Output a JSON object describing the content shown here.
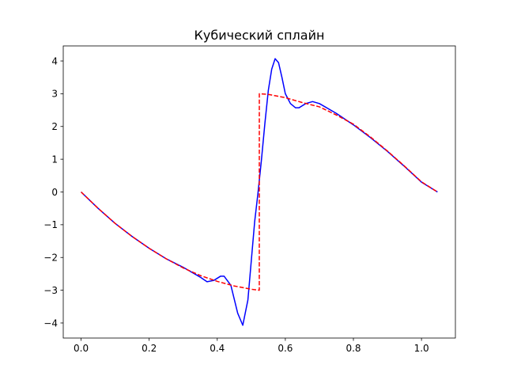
{
  "chart_data": {
    "type": "line",
    "title": "Кубический сплайн",
    "xlabel": "",
    "ylabel": "",
    "xlim": [
      -0.0524,
      1.0996
    ],
    "ylim": [
      -4.46,
      4.46
    ],
    "grid": false,
    "legend": "none",
    "x_ticks": [
      0.0,
      0.2,
      0.4,
      0.6,
      0.8,
      1.0
    ],
    "x_tick_labels": [
      "0.0",
      "0.2",
      "0.4",
      "0.6",
      "0.8",
      "1.0"
    ],
    "y_ticks": [
      -4,
      -3,
      -2,
      -1,
      0,
      1,
      2,
      3,
      4
    ],
    "y_tick_labels": [
      "−4",
      "−3",
      "−2",
      "−1",
      "0",
      "1",
      "2",
      "3",
      "4"
    ],
    "series": [
      {
        "color": "#0000ff",
        "style": "solid",
        "x": [
          0.0,
          0.05,
          0.1,
          0.15,
          0.2,
          0.25,
          0.3,
          0.35,
          0.37,
          0.39,
          0.41,
          0.42,
          0.44,
          0.46,
          0.475,
          0.49,
          0.5,
          0.51,
          0.52,
          0.53,
          0.54,
          0.55,
          0.56,
          0.57,
          0.58,
          0.59,
          0.6,
          0.615,
          0.63,
          0.64,
          0.66,
          0.68,
          0.7,
          0.75,
          0.8,
          0.85,
          0.9,
          0.95,
          1.0,
          1.047
        ],
        "y": [
          0.0,
          -0.5,
          -0.96,
          -1.36,
          -1.72,
          -2.04,
          -2.3,
          -2.6,
          -2.74,
          -2.7,
          -2.57,
          -2.57,
          -2.85,
          -3.7,
          -4.07,
          -3.3,
          -2.1,
          -0.9,
          0.0,
          1.0,
          2.1,
          3.1,
          3.75,
          4.07,
          3.95,
          3.5,
          3.0,
          2.7,
          2.57,
          2.57,
          2.7,
          2.76,
          2.7,
          2.4,
          2.05,
          1.66,
          1.24,
          0.78,
          0.3,
          0.0
        ]
      },
      {
        "color": "#ff0000",
        "style": "dashed",
        "x": [
          0.0,
          0.05,
          0.1,
          0.15,
          0.2,
          0.25,
          0.3,
          0.35,
          0.4,
          0.45,
          0.5,
          0.5235,
          0.5236,
          0.55,
          0.6,
          0.65,
          0.7,
          0.75,
          0.8,
          0.85,
          0.9,
          0.95,
          1.0,
          1.047
        ],
        "y": [
          0.0,
          -0.5,
          -0.96,
          -1.36,
          -1.72,
          -2.04,
          -2.32,
          -2.55,
          -2.73,
          -2.87,
          -2.97,
          -3.0,
          3.0,
          2.98,
          2.88,
          2.73,
          2.6,
          2.35,
          2.07,
          1.68,
          1.25,
          0.79,
          0.31,
          0.0
        ]
      }
    ]
  }
}
